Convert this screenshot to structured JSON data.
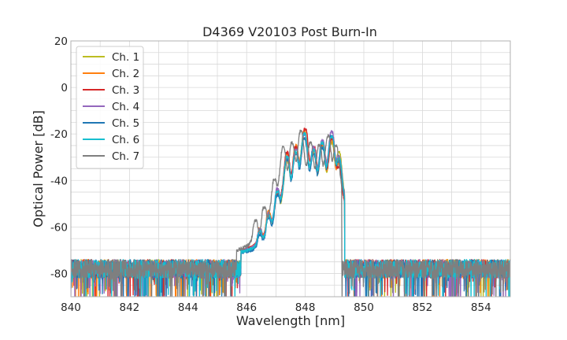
{
  "chart_data": {
    "type": "line",
    "title": "D4369 V20103 Post Burn-In",
    "xlabel": "Wavelength [nm]",
    "ylabel": "Optical Power [dB]",
    "xlim": [
      840,
      855
    ],
    "ylim": [
      -90,
      20
    ],
    "xticks": [
      840,
      842,
      844,
      846,
      848,
      850,
      852,
      854
    ],
    "yticks": [
      -80,
      -60,
      -40,
      -20,
      0,
      20
    ],
    "grid": true,
    "legend_position": "top-left",
    "noise_floor_db": -78,
    "series": [
      {
        "name": "Ch. 1",
        "color": "#bcbd22",
        "peaks": [
          [
            846.45,
            -63
          ],
          [
            846.75,
            -55
          ],
          [
            847.05,
            -46
          ],
          [
            847.38,
            -32
          ],
          [
            847.68,
            -27
          ],
          [
            847.97,
            -19
          ],
          [
            848.28,
            -28
          ],
          [
            848.58,
            -26
          ],
          [
            848.9,
            -24
          ],
          [
            849.15,
            -28
          ]
        ]
      },
      {
        "name": "Ch. 2",
        "color": "#ff7f0e",
        "peaks": [
          [
            846.45,
            -62
          ],
          [
            846.75,
            -54
          ],
          [
            847.05,
            -45
          ],
          [
            847.38,
            -29
          ],
          [
            847.68,
            -25
          ],
          [
            847.97,
            -19
          ],
          [
            848.28,
            -27
          ],
          [
            848.58,
            -25
          ],
          [
            848.9,
            -23
          ],
          [
            849.15,
            -33
          ]
        ]
      },
      {
        "name": "Ch. 3",
        "color": "#d62728",
        "peaks": [
          [
            846.45,
            -64
          ],
          [
            846.75,
            -56
          ],
          [
            847.05,
            -47
          ],
          [
            847.38,
            -28
          ],
          [
            847.68,
            -26
          ],
          [
            848.0,
            -18
          ],
          [
            848.3,
            -26
          ],
          [
            848.6,
            -24
          ],
          [
            848.92,
            -22
          ],
          [
            849.15,
            -35
          ]
        ]
      },
      {
        "name": "Ch. 4",
        "color": "#9467bd",
        "peaks": [
          [
            846.45,
            -62
          ],
          [
            846.75,
            -55
          ],
          [
            847.05,
            -44
          ],
          [
            847.38,
            -30
          ],
          [
            847.68,
            -27
          ],
          [
            847.97,
            -20
          ],
          [
            848.28,
            -26
          ],
          [
            848.58,
            -23
          ],
          [
            848.9,
            -19
          ],
          [
            849.15,
            -30
          ]
        ]
      },
      {
        "name": "Ch. 5",
        "color": "#1f77b4",
        "peaks": [
          [
            846.45,
            -65
          ],
          [
            846.75,
            -57
          ],
          [
            847.05,
            -47
          ],
          [
            847.38,
            -31
          ],
          [
            847.68,
            -29
          ],
          [
            847.97,
            -22
          ],
          [
            848.28,
            -29
          ],
          [
            848.58,
            -26
          ],
          [
            848.9,
            -21
          ],
          [
            849.15,
            -32
          ]
        ]
      },
      {
        "name": "Ch. 6",
        "color": "#17becf",
        "peaks": [
          [
            846.45,
            -63
          ],
          [
            846.75,
            -56
          ],
          [
            847.05,
            -45
          ],
          [
            847.38,
            -30
          ],
          [
            847.68,
            -28
          ],
          [
            847.97,
            -20
          ],
          [
            848.28,
            -27
          ],
          [
            848.58,
            -24
          ],
          [
            848.9,
            -21
          ],
          [
            849.15,
            -31
          ]
        ]
      },
      {
        "name": "Ch. 7",
        "color": "#7f7f7f",
        "peaks": [
          [
            846.3,
            -58
          ],
          [
            846.6,
            -52
          ],
          [
            846.95,
            -40
          ],
          [
            847.25,
            -26
          ],
          [
            847.55,
            -24
          ],
          [
            847.85,
            -19
          ],
          [
            848.18,
            -24
          ],
          [
            848.48,
            -25
          ],
          [
            848.78,
            -21
          ],
          [
            849.05,
            -25
          ]
        ]
      }
    ]
  }
}
